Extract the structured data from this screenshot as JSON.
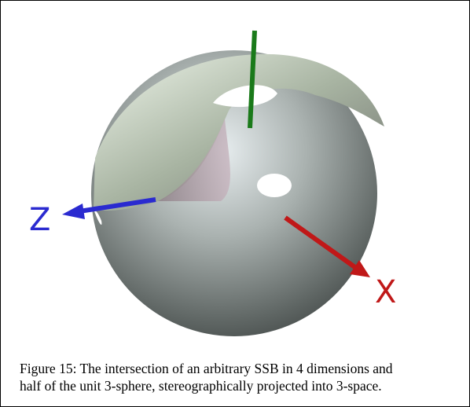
{
  "figure": {
    "labels": {
      "z": "Z",
      "x": "X"
    },
    "caption": [
      "Figure 15: The intersection of an arbitrary SSB in 4 dimensions and",
      "half of the unit 3-sphere, stereographically projected into 3-space."
    ]
  }
}
